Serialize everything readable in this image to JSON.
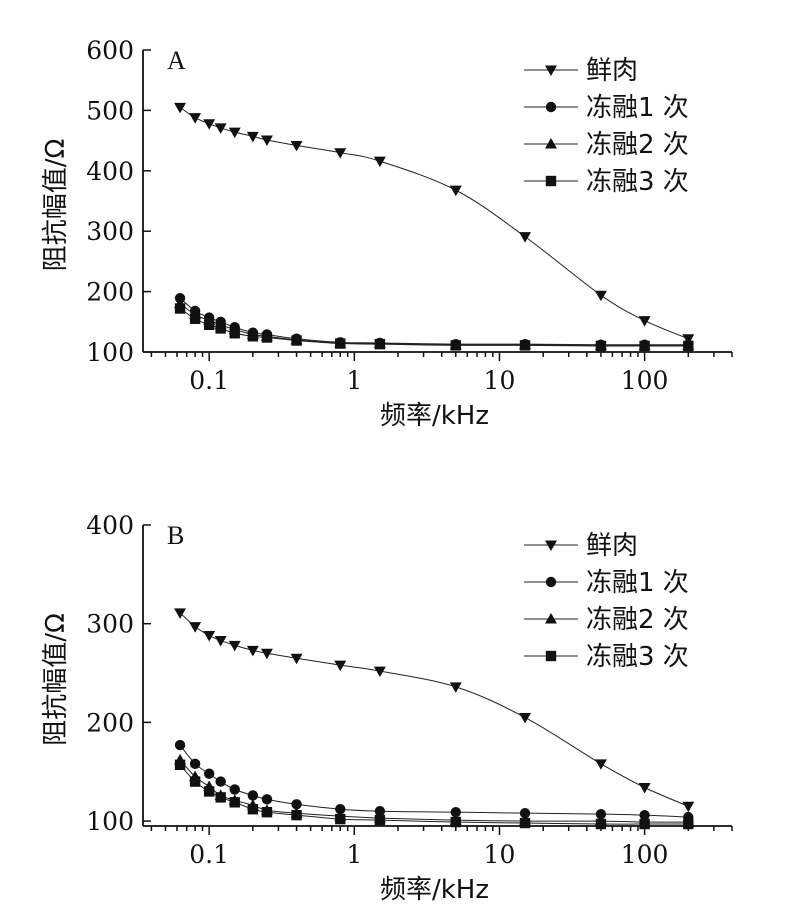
{
  "chart_data": [
    {
      "type": "line",
      "panel_label": "A",
      "xlabel": "频率/kHz",
      "ylabel": "阻抗幅值/Ω",
      "x_scale": "log",
      "xlim": [
        0.035,
        400
      ],
      "ylim": [
        100,
        600
      ],
      "x_ticks": [
        0.1,
        1,
        10,
        100
      ],
      "x_tick_labels": [
        "0.1",
        "1",
        "10",
        "100"
      ],
      "y_ticks": [
        100,
        200,
        300,
        400,
        500,
        600
      ],
      "y_tick_labels": [
        "100",
        "200",
        "300",
        "400",
        "500",
        "600"
      ],
      "x": [
        0.063,
        0.08,
        0.1,
        0.12,
        0.15,
        0.2,
        0.25,
        0.4,
        0.8,
        1.5,
        5,
        15,
        50,
        100,
        200
      ],
      "series": [
        {
          "name": "鲜肉",
          "marker": "triangle-down",
          "values": [
            505,
            488,
            478,
            471,
            464,
            457,
            451,
            442,
            430,
            416,
            368,
            291,
            194,
            152,
            122
          ]
        },
        {
          "name": "冻融1 次",
          "marker": "circle",
          "values": [
            189,
            168,
            157,
            150,
            141,
            132,
            129,
            122,
            116,
            115,
            113,
            113,
            112,
            112,
            112
          ]
        },
        {
          "name": "冻融2 次",
          "marker": "triangle-up",
          "values": [
            180,
            162,
            152,
            145,
            137,
            129,
            126,
            120,
            115,
            114,
            112,
            112,
            111,
            111,
            111
          ]
        },
        {
          "name": "冻融3 次",
          "marker": "square",
          "values": [
            172,
            155,
            145,
            139,
            131,
            126,
            124,
            119,
            114,
            113,
            111,
            111,
            110,
            110,
            110
          ]
        }
      ],
      "legend_position": "top-right",
      "grid": false
    },
    {
      "type": "line",
      "panel_label": "B",
      "xlabel": "频率/kHz",
      "ylabel": "阻抗幅值/Ω",
      "x_scale": "log",
      "xlim": [
        0.035,
        400
      ],
      "ylim": [
        95,
        400
      ],
      "x_ticks": [
        0.1,
        1,
        10,
        100
      ],
      "x_tick_labels": [
        "0.1",
        "1",
        "10",
        "100"
      ],
      "y_ticks": [
        100,
        200,
        300,
        400
      ],
      "y_tick_labels": [
        "100",
        "200",
        "300",
        "400"
      ],
      "x": [
        0.063,
        0.08,
        0.1,
        0.12,
        0.15,
        0.2,
        0.25,
        0.4,
        0.8,
        1.5,
        5,
        15,
        50,
        100,
        200
      ],
      "series": [
        {
          "name": "鲜肉",
          "marker": "triangle-down",
          "values": [
            311,
            297,
            288,
            283,
            278,
            273,
            270,
            265,
            258,
            252,
            236,
            205,
            158,
            134,
            115
          ]
        },
        {
          "name": "冻融1 次",
          "marker": "circle",
          "values": [
            177,
            158,
            148,
            140,
            132,
            126,
            122,
            117,
            112,
            110,
            109,
            108,
            107,
            106,
            104
          ]
        },
        {
          "name": "冻融2 次",
          "marker": "triangle-up",
          "values": [
            162,
            145,
            135,
            126,
            121,
            116,
            111,
            108,
            105,
            103,
            101,
            100,
            100,
            99,
            99
          ]
        },
        {
          "name": "冻融3 次",
          "marker": "square",
          "values": [
            157,
            140,
            130,
            124,
            119,
            112,
            109,
            106,
            102,
            101,
            99,
            98,
            97,
            97,
            97
          ]
        }
      ],
      "legend_position": "top-right",
      "grid": false
    }
  ]
}
